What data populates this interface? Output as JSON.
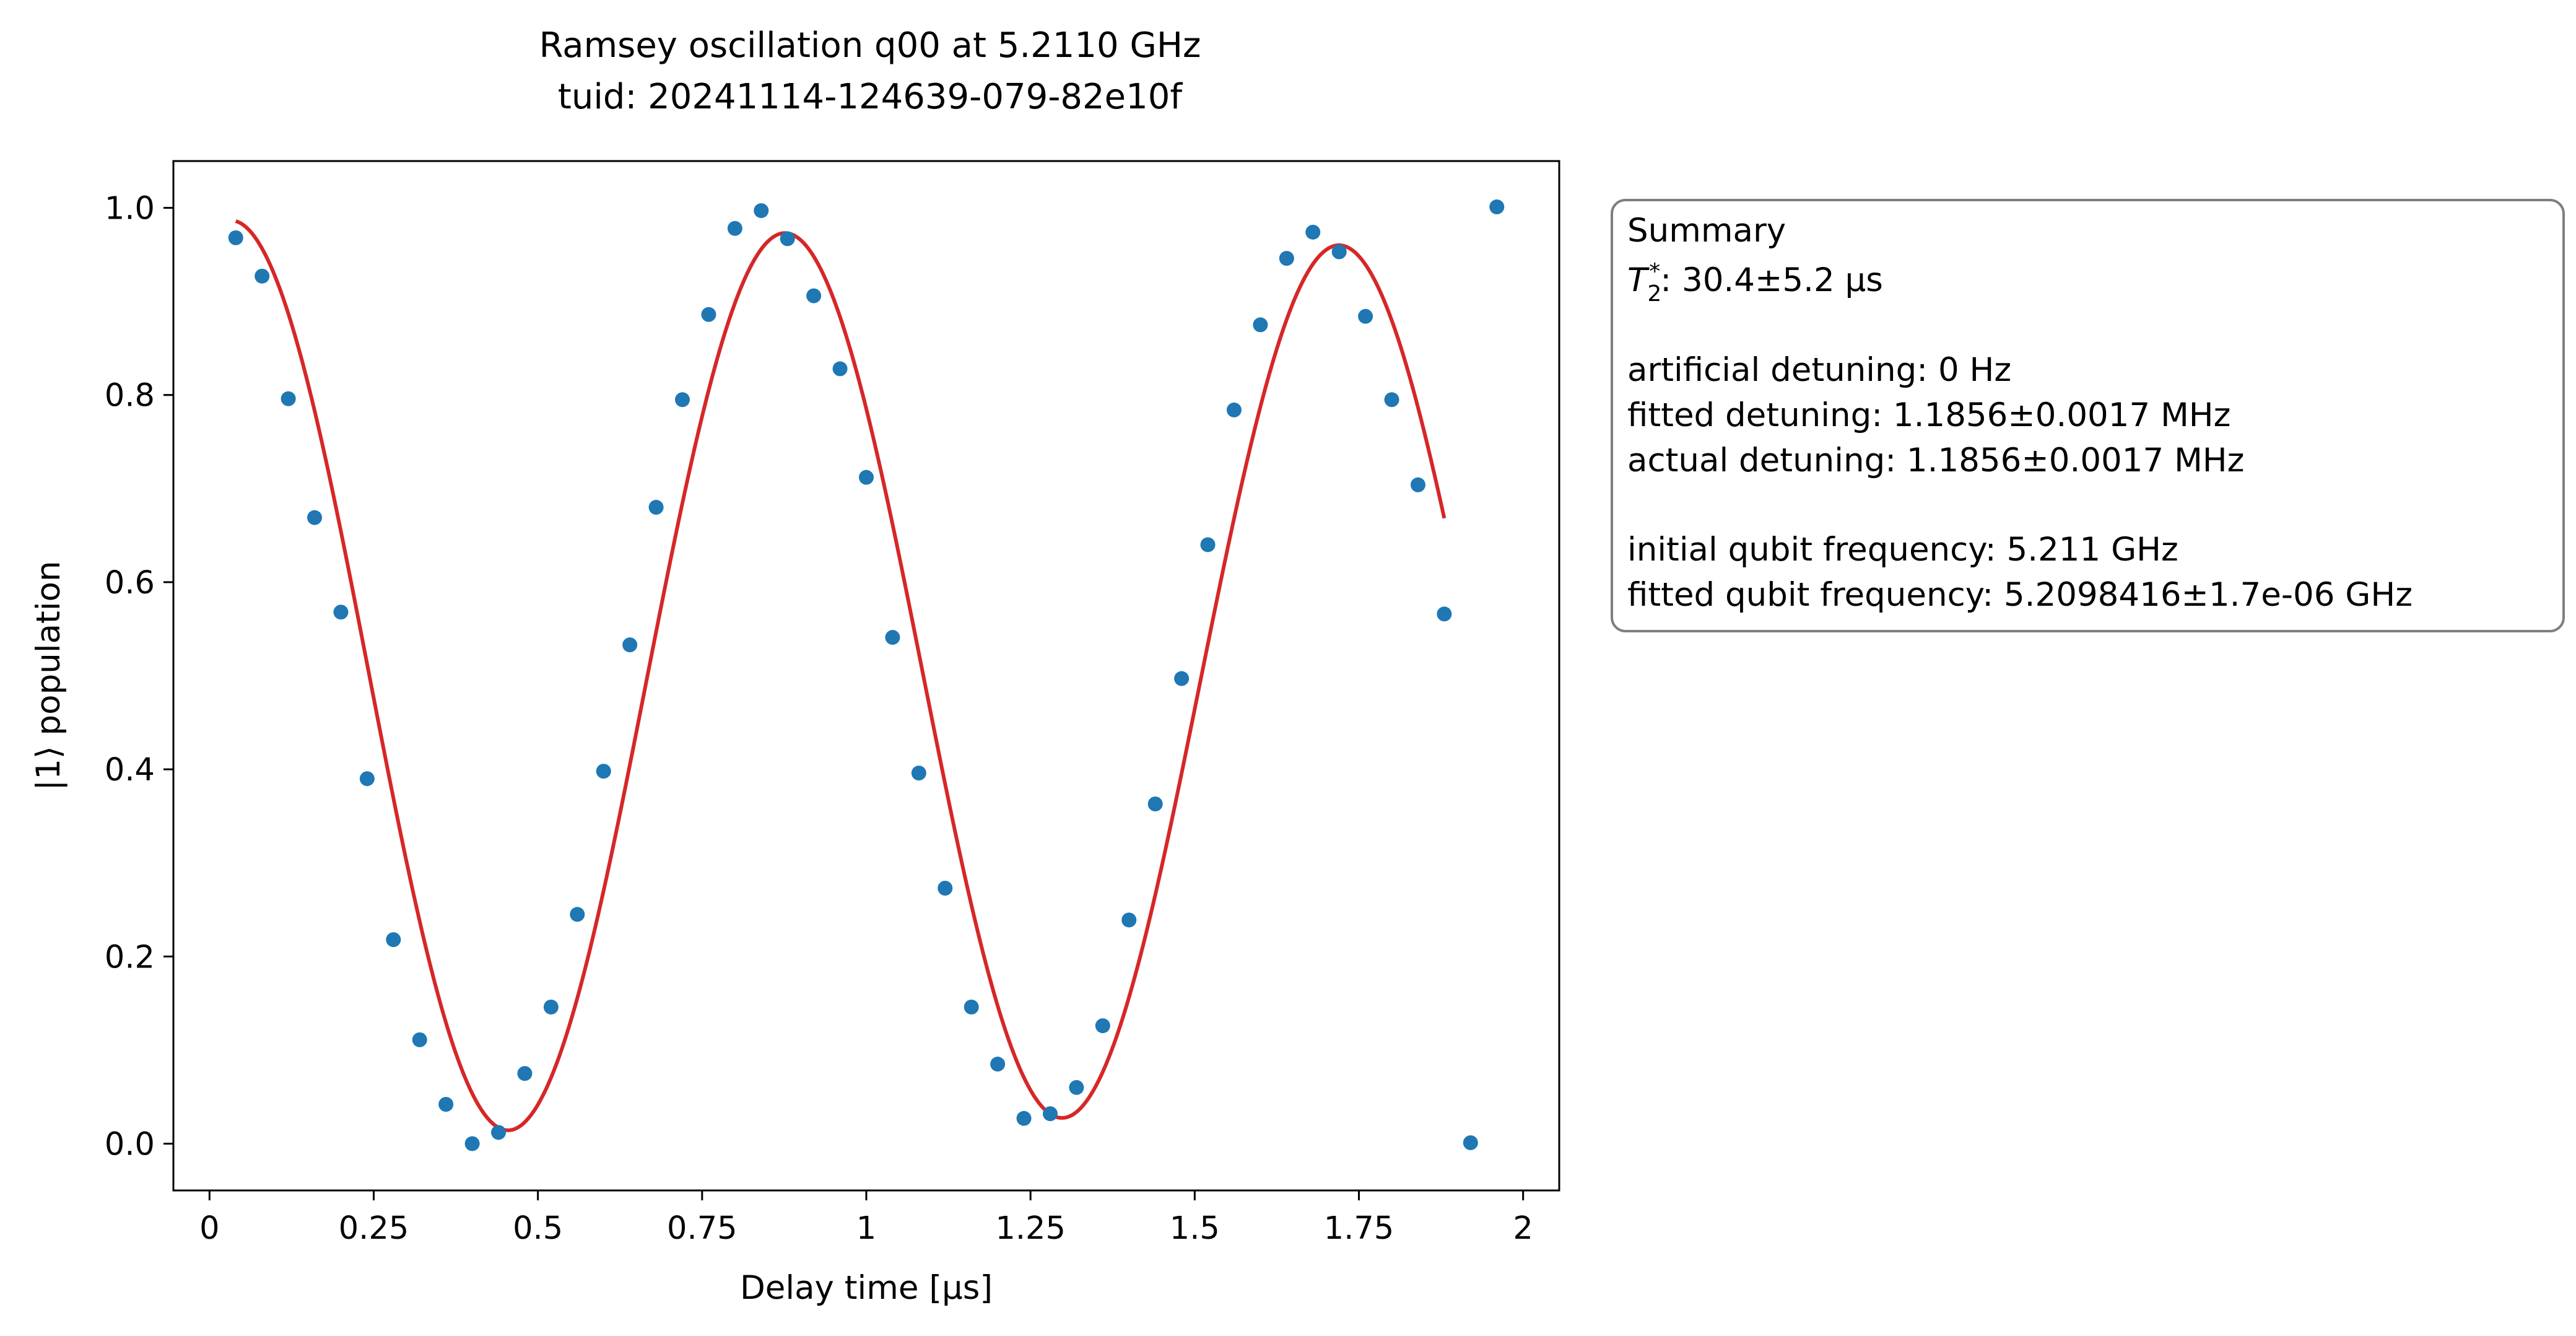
{
  "chart_data": {
    "type": "scatter",
    "title_lines": [
      "Ramsey oscillation q00 at 5.2110 GHz",
      "tuid: 20241114-124639-079-82e10f"
    ],
    "xlabel": "Delay time [µs]",
    "ylabel": "|1⟩ population",
    "xlim": [
      -0.055,
      2.055
    ],
    "ylim": [
      -0.05,
      1.05
    ],
    "xticks": [
      0,
      0.25,
      0.5,
      0.75,
      1,
      1.25,
      1.5,
      1.75,
      2
    ],
    "xtick_labels": [
      "0",
      "0.25",
      "0.5",
      "0.75",
      "1",
      "1.25",
      "1.5",
      "1.75",
      "2"
    ],
    "yticks": [
      0,
      0.2,
      0.4,
      0.6,
      0.8,
      1.0
    ],
    "ytick_labels": [
      "0.0",
      "0.2",
      "0.4",
      "0.6",
      "0.8",
      "1.0"
    ],
    "grid": false,
    "series": [
      {
        "kind": "scatter",
        "color": "#1f77b4",
        "x": [
          0.04,
          0.08,
          0.12,
          0.16,
          0.2,
          0.24,
          0.28,
          0.32,
          0.36,
          0.4,
          0.44,
          0.48,
          0.52,
          0.56,
          0.6,
          0.64,
          0.68,
          0.72,
          0.76,
          0.8,
          0.84,
          0.88,
          0.92,
          0.96,
          1.0,
          1.04,
          1.08,
          1.12,
          1.16,
          1.2,
          1.24,
          1.28,
          1.32,
          1.36,
          1.4,
          1.44,
          1.48,
          1.52,
          1.56,
          1.6,
          1.64,
          1.68,
          1.72,
          1.76,
          1.8,
          1.84,
          1.88,
          1.92,
          1.96
        ],
        "y": [
          0.968,
          0.927,
          0.796,
          0.669,
          0.568,
          0.39,
          0.218,
          0.111,
          0.042,
          0.0,
          0.012,
          0.075,
          0.146,
          0.245,
          0.398,
          0.533,
          0.68,
          0.795,
          0.886,
          0.978,
          0.997,
          0.967,
          0.906,
          0.828,
          0.712,
          0.541,
          0.396,
          0.273,
          0.146,
          0.085,
          0.027,
          0.032,
          0.06,
          0.126,
          0.239,
          0.363,
          0.497,
          0.64,
          0.784,
          0.875,
          0.946,
          0.974,
          0.953,
          0.884,
          0.795,
          0.704,
          0.566,
          0.001,
          1.001
        ]
      },
      {
        "kind": "fit",
        "color": "#d62728",
        "model": "A*cos(2*pi*f*t + phi)*exp(-t/T2) + B",
        "params": {
          "A": 0.49,
          "f": 1.1856,
          "phi": -0.2486,
          "T2": 30.4,
          "B": 0.497
        },
        "t_range": [
          0.04,
          1.88
        ]
      }
    ],
    "summary": {
      "heading": "Summary",
      "t2_value": ": 30.4±5.2 µs",
      "artificial_detuning": "artificial detuning: 0 Hz",
      "fitted_detuning": "fitted detuning: 1.1856±0.0017 MHz",
      "actual_detuning": "actual detuning: 1.1856±0.0017 MHz",
      "initial_freq": "initial qubit frequency: 5.211 GHz",
      "fitted_freq": "fitted qubit frequency: 5.2098416±1.7e-06 GHz"
    }
  }
}
